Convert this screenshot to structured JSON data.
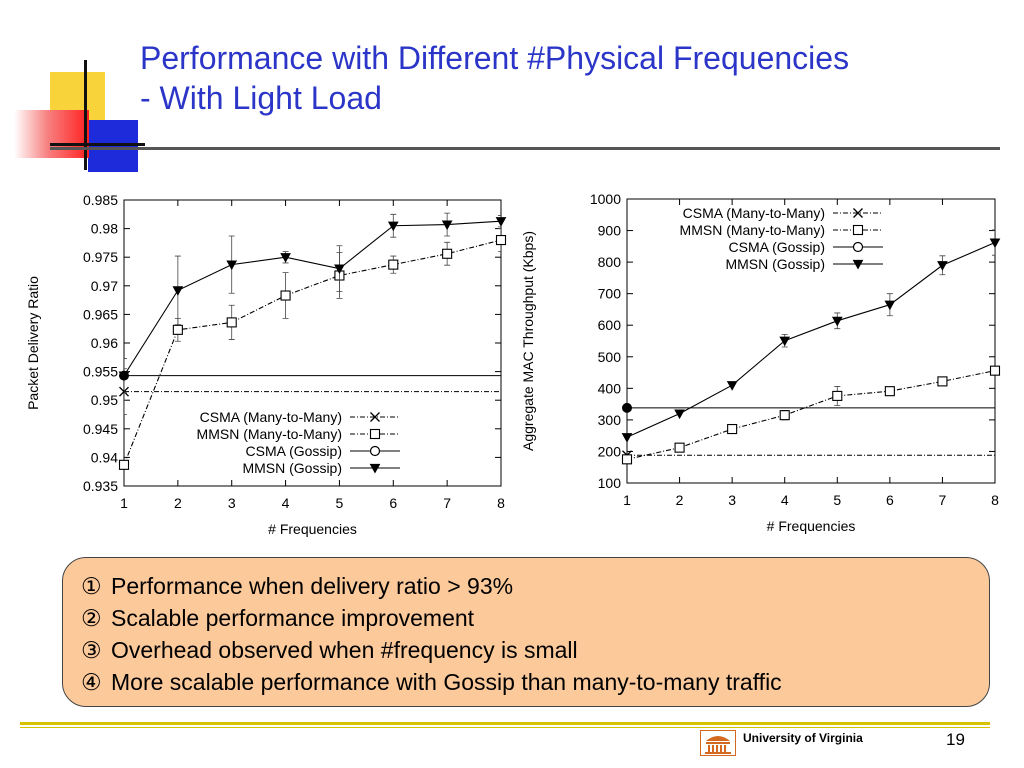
{
  "slide": {
    "title_line1": "Performance with Different #Physical Frequencies",
    "title_line2": "- With Light Load",
    "footer_org": "University of Virginia",
    "page_number": "19",
    "notes": [
      {
        "num": "①",
        "text": "Performance when delivery ratio > 93%"
      },
      {
        "num": "②",
        "text": "Scalable performance improvement"
      },
      {
        "num": "③",
        "text": "Overhead observed when #frequency is small"
      },
      {
        "num": "④",
        "text": "More scalable performance with Gossip than many-to-many traffic"
      }
    ],
    "colors": {
      "title": "#2b35c8",
      "notes_box": "#fcc99a",
      "footer_rule": "#d8c200",
      "logo": "#d2691e"
    }
  },
  "chart_data": [
    {
      "type": "line",
      "xlabel": "# Frequencies",
      "ylabel": "Packet Delivery Ratio",
      "x": [
        1,
        2,
        3,
        4,
        5,
        6,
        7,
        8
      ],
      "xlim": [
        1,
        8
      ],
      "ylim": [
        0.935,
        0.985
      ],
      "yticks": [
        "0.935",
        "0.94",
        "0.945",
        "0.95",
        "0.955",
        "0.96",
        "0.965",
        "0.97",
        "0.975",
        "0.98",
        "0.985"
      ],
      "legend_position": "bottom-right",
      "series": [
        {
          "name": "CSMA (Many-to-Many)",
          "marker": "x",
          "style": "dashdot",
          "values": [
            0.9515,
            0.9515,
            0.9515,
            0.9515,
            0.9515,
            0.9515,
            0.9515,
            0.9515
          ],
          "err": [
            0.004,
            0,
            0,
            0,
            0,
            0,
            0,
            0
          ]
        },
        {
          "name": "MMSN (Many-to-Many)",
          "marker": "square",
          "style": "dashdot",
          "values": [
            0.9387,
            0.9623,
            0.9636,
            0.9683,
            0.9718,
            0.9737,
            0.9756,
            0.978
          ],
          "err": [
            0,
            0.002,
            0.003,
            0.004,
            0.004,
            0.0015,
            0.002,
            0.002
          ]
        },
        {
          "name": "CSMA (Gossip)",
          "marker": "circle",
          "style": "solid",
          "values": [
            0.9543,
            0.9543,
            0.9543,
            0.9543,
            0.9543,
            0.9543,
            0.9543,
            0.9543
          ],
          "err": [
            0.003,
            0,
            0,
            0,
            0,
            0,
            0,
            0
          ]
        },
        {
          "name": "MMSN (Gossip)",
          "marker": "triangle-down",
          "style": "solid",
          "values": [
            0.9543,
            0.9692,
            0.9737,
            0.975,
            0.973,
            0.9805,
            0.9807,
            0.9813
          ],
          "err": [
            0,
            0.006,
            0.005,
            0.001,
            0.004,
            0.002,
            0.002,
            0.001
          ]
        }
      ]
    },
    {
      "type": "line",
      "xlabel": "# Frequencies",
      "ylabel": "Aggregate MAC Throughput (Kbps)",
      "x": [
        1,
        2,
        3,
        4,
        5,
        6,
        7,
        8
      ],
      "xlim": [
        1,
        8
      ],
      "ylim": [
        100,
        1000
      ],
      "yticks": [
        "100",
        "200",
        "300",
        "400",
        "500",
        "600",
        "700",
        "800",
        "900",
        "1000"
      ],
      "legend_position": "top-right",
      "series": [
        {
          "name": "CSMA (Many-to-Many)",
          "marker": "x",
          "style": "dashdot",
          "values": [
            188,
            188,
            188,
            188,
            188,
            188,
            188,
            188
          ],
          "err": [
            0,
            0,
            0,
            0,
            0,
            0,
            0,
            0
          ]
        },
        {
          "name": "MMSN (Many-to-Many)",
          "marker": "square",
          "style": "dashdot",
          "values": [
            175,
            212,
            271,
            315,
            376,
            391,
            422,
            456
          ],
          "err": [
            0,
            0,
            0,
            15,
            30,
            10,
            10,
            10
          ]
        },
        {
          "name": "CSMA (Gossip)",
          "marker": "circle",
          "style": "solid",
          "values": [
            338,
            338,
            338,
            338,
            338,
            338,
            338,
            338
          ],
          "err": [
            0,
            0,
            0,
            0,
            0,
            0,
            0,
            0
          ]
        },
        {
          "name": "MMSN (Gossip)",
          "marker": "triangle-down",
          "style": "solid",
          "values": [
            245,
            320,
            410,
            551,
            614,
            665,
            790,
            862
          ],
          "err": [
            0,
            0,
            0,
            20,
            25,
            35,
            30,
            40
          ]
        }
      ]
    }
  ]
}
